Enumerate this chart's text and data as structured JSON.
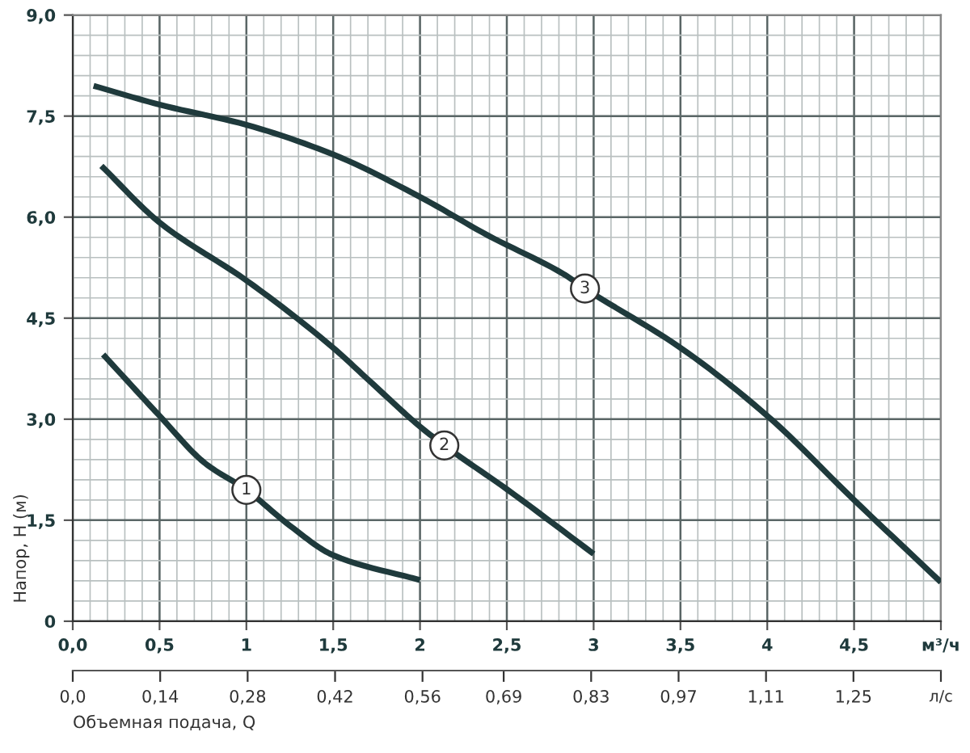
{
  "chart_data": {
    "type": "line",
    "ylabel": "Напор, H (м)",
    "x2label": "Объемная подача, Q",
    "series": [
      {
        "name": "1",
        "color": "#1f3a3c",
        "x": [
          0.175,
          0.5,
          0.76,
          1.0,
          1.25,
          1.5,
          2.0
        ],
        "values": [
          3.96,
          3.05,
          2.35,
          1.95,
          1.42,
          0.98,
          0.61
        ]
      },
      {
        "name": "2",
        "color": "#1f3a3c",
        "x": [
          0.165,
          0.5,
          1.0,
          1.5,
          1.7,
          2.0,
          2.14,
          2.5,
          3.0
        ],
        "values": [
          6.76,
          5.92,
          5.06,
          4.06,
          3.59,
          2.89,
          2.61,
          1.96,
          1.0
        ]
      },
      {
        "name": "3",
        "color": "#1f3a3c",
        "x": [
          0.12,
          0.5,
          1.0,
          1.5,
          2.0,
          2.39,
          2.83,
          2.95,
          3.5,
          4.0,
          4.5,
          5.0
        ],
        "values": [
          7.95,
          7.67,
          7.37,
          6.93,
          6.3,
          5.73,
          5.15,
          4.94,
          4.06,
          3.05,
          1.8,
          0.58
        ]
      }
    ],
    "xlim": [
      0,
      5
    ],
    "xticks": [
      {
        "value": 0,
        "label": "0,0"
      },
      {
        "value": 0.5,
        "label": "0,5"
      },
      1,
      {
        "value": 1.5,
        "label": "1,5"
      },
      2,
      {
        "value": 2.5,
        "label": "2,5"
      },
      3,
      {
        "value": 3.5,
        "label": "3,5"
      },
      4,
      {
        "value": 4.5,
        "label": "4,5"
      },
      {
        "value": 5,
        "label": "м³/ч"
      }
    ],
    "x2lim": [
      0,
      1.39
    ],
    "x2ticks": [
      {
        "value": 0,
        "label": "0,0"
      },
      {
        "value": 0.14,
        "label": "0,14"
      },
      {
        "value": 0.28,
        "label": "0,28"
      },
      {
        "value": 0.42,
        "label": "0,42"
      },
      {
        "value": 0.56,
        "label": "0,56"
      },
      {
        "value": 0.69,
        "label": "0,69"
      },
      {
        "value": 0.83,
        "label": "0,83"
      },
      {
        "value": 0.97,
        "label": "0,97"
      },
      {
        "value": 1.11,
        "label": "1,11"
      },
      {
        "value": 1.25,
        "label": "1,25"
      },
      {
        "value": 1.39,
        "label": "л/с"
      }
    ],
    "ylim": [
      0,
      9
    ],
    "yticks": [
      0,
      {
        "value": 1.5,
        "label": "1,5"
      },
      {
        "value": 3,
        "label": "3,0"
      },
      {
        "value": 4.5,
        "label": "4,5"
      },
      {
        "value": 6,
        "label": "6,0"
      },
      {
        "value": 7.5,
        "label": "7,5"
      },
      {
        "value": 9,
        "label": "9,0"
      }
    ],
    "grid": true,
    "legend": false,
    "marker": "none",
    "line_style": "solid"
  }
}
